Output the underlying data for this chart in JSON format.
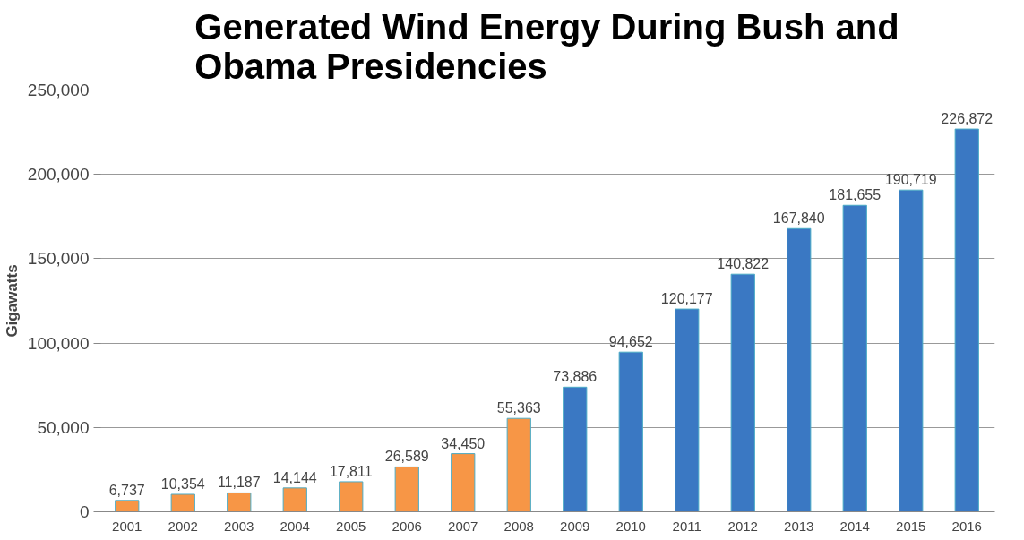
{
  "chart_data": {
    "type": "bar",
    "title": "Generated Wind Energy During Bush and Obama Presidencies",
    "ylabel": "Gigawatts",
    "categories": [
      "2001",
      "2002",
      "2003",
      "2004",
      "2005",
      "2006",
      "2007",
      "2008",
      "2009",
      "2010",
      "2011",
      "2012",
      "2013",
      "2014",
      "2015",
      "2016"
    ],
    "values": [
      6737,
      10354,
      11187,
      14144,
      17811,
      26589,
      34450,
      55363,
      73886,
      94652,
      120177,
      140822,
      167840,
      181655,
      190719,
      226872
    ],
    "colors": [
      "#f79646",
      "#f79646",
      "#f79646",
      "#f79646",
      "#f79646",
      "#f79646",
      "#f79646",
      "#f79646",
      "#3a78c3",
      "#3a78c3",
      "#3a78c3",
      "#3a78c3",
      "#3a78c3",
      "#3a78c3",
      "#3a78c3",
      "#3a78c3"
    ],
    "ylim": [
      0,
      250000
    ],
    "yticks": [
      {
        "value": 0,
        "label": "0"
      },
      {
        "value": 50000,
        "label": "50,000"
      },
      {
        "value": 100000,
        "label": "100,000"
      },
      {
        "value": 150000,
        "label": "150,000"
      },
      {
        "value": 200000,
        "label": "200,000"
      },
      {
        "value": 250000,
        "label": "250,000"
      }
    ],
    "value_labels": [
      "6,737",
      "10,354",
      "11,187",
      "14,144",
      "17,811",
      "26,589",
      "34,450",
      "55,363",
      "73,886",
      "94,652",
      "120,177",
      "140,822",
      "167,840",
      "181,655",
      "190,719",
      "226,872"
    ],
    "grid": "y"
  }
}
